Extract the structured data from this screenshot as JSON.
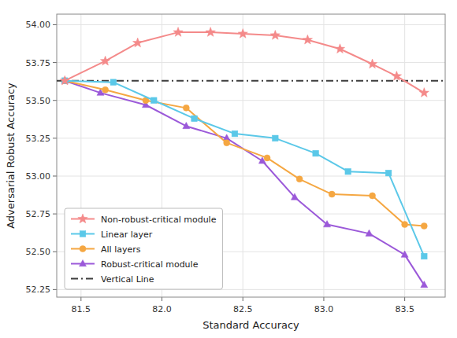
{
  "chart_data": {
    "type": "line",
    "x_label": "Standard Accuracy",
    "y_label": "Adversarial Robust Accuracy",
    "series": [
      {
        "name": "Non-robust-critical module",
        "color": "#f48a8a",
        "marker": "star",
        "x": [
          81.4,
          81.65,
          81.85,
          82.1,
          82.3,
          82.5,
          82.7,
          82.9,
          83.1,
          83.3,
          83.45,
          83.62
        ],
        "values": [
          53.63,
          53.76,
          53.88,
          53.95,
          53.95,
          53.94,
          53.93,
          53.9,
          53.84,
          53.74,
          53.66,
          53.55
        ]
      },
      {
        "name": "Linear layer",
        "color": "#5bc8e8",
        "marker": "square",
        "x": [
          81.4,
          81.7,
          81.95,
          82.2,
          82.45,
          82.7,
          82.95,
          83.15,
          83.4,
          83.62
        ],
        "values": [
          53.63,
          53.62,
          53.5,
          53.38,
          53.28,
          53.25,
          53.15,
          53.03,
          53.02,
          52.47
        ]
      },
      {
        "name": "All layers",
        "color": "#f5a742",
        "marker": "circle",
        "x": [
          81.4,
          81.65,
          81.9,
          82.15,
          82.4,
          82.65,
          82.85,
          83.05,
          83.3,
          83.5,
          83.62
        ],
        "values": [
          53.63,
          53.57,
          53.5,
          53.45,
          53.22,
          53.12,
          52.98,
          52.88,
          52.87,
          52.68,
          52.67
        ]
      },
      {
        "name": "Robust-critical module",
        "color": "#9b59d9",
        "marker": "triangle",
        "x": [
          81.4,
          81.62,
          81.9,
          82.15,
          82.4,
          82.62,
          82.82,
          83.02,
          83.28,
          83.5,
          83.62
        ],
        "values": [
          53.63,
          53.55,
          53.47,
          53.33,
          53.25,
          53.1,
          52.86,
          52.68,
          52.62,
          52.48,
          52.28
        ]
      },
      {
        "name": "Vertical Line",
        "color": "#3d3d3d",
        "type": "hline",
        "line_style": "dashdot",
        "values": [
          53.63
        ]
      }
    ],
    "xlim": [
      81.35,
      83.75
    ],
    "ylim": [
      52.2,
      54.07
    ],
    "xticks": [
      81.5,
      {
        "value": 82.0,
        "label": "82.0"
      },
      82.5,
      {
        "value": 83.0,
        "label": "83.0"
      },
      83.5
    ],
    "yticks": [
      52.25,
      {
        "value": 52.5,
        "label": "52.50"
      },
      52.75,
      {
        "value": 53.0,
        "label": "53.00"
      },
      53.25,
      {
        "value": 53.5,
        "label": "53.50"
      },
      53.75,
      {
        "value": 54.0,
        "label": "54.00"
      }
    ],
    "grid": true,
    "legend": "lower left"
  }
}
